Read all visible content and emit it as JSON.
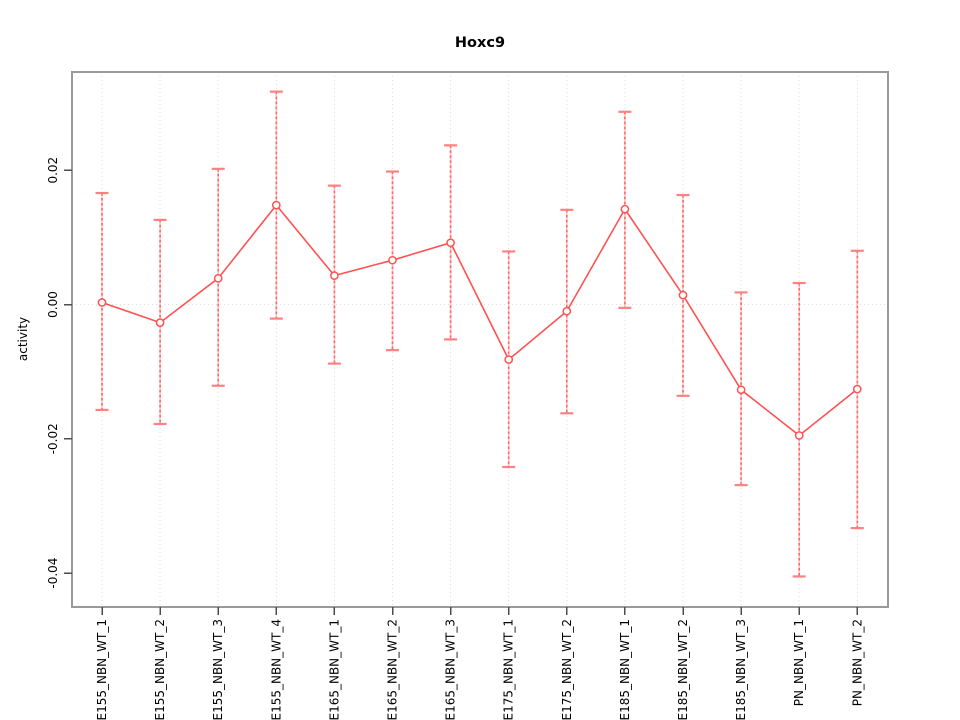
{
  "figure": {
    "title": "Hoxc9",
    "ylabel": "activity",
    "xlabel": ""
  },
  "colors": {
    "series_line": "#ff5252",
    "error_bar_solid": "#ff8080",
    "error_bar_light": "#ffc2c2",
    "error_bar_dash": "#ff6666",
    "marker_fill": "#ffffff",
    "grid": "#dcdcdc",
    "box_border": "#999999",
    "tick": "#4d4d4d",
    "text": "#000000"
  },
  "chart_data": {
    "type": "line",
    "title": "Hoxc9",
    "xlabel": "",
    "ylabel": "activity",
    "legend": "none",
    "grid": "dotted vertical gridline per category; dotted horizontal gridline at y=0 only",
    "marker": "open-circle",
    "error_bars": true,
    "ylim": [
      -0.045,
      0.0346
    ],
    "yticks": [
      0.02,
      0.0,
      -0.02,
      -0.04
    ],
    "ytick_labels": [
      "0.02",
      "0.00",
      "-0.02",
      "-0.04"
    ],
    "categories": [
      "E155_NBN_WT_1",
      "E155_NBN_WT_2",
      "E155_NBN_WT_3",
      "E155_NBN_WT_4",
      "E165_NBN_WT_1",
      "E165_NBN_WT_2",
      "E165_NBN_WT_3",
      "E175_NBN_WT_1",
      "E175_NBN_WT_2",
      "E185_NBN_WT_1",
      "E185_NBN_WT_2",
      "E185_NBN_WT_3",
      "PN_NBN_WT_1",
      "PN_NBN_WT_2"
    ],
    "series": [
      {
        "name": "activity",
        "values": [
          0.0003,
          -0.0027,
          0.0039,
          0.0148,
          0.0043,
          0.0066,
          0.0092,
          -0.0082,
          -0.001,
          0.0142,
          0.0014,
          -0.0127,
          -0.0195,
          -0.0126
        ],
        "lower": [
          -0.0157,
          -0.0178,
          -0.0121,
          -0.0021,
          -0.0088,
          -0.0068,
          -0.0052,
          -0.0242,
          -0.0162,
          -0.0005,
          -0.0136,
          -0.0269,
          -0.0405,
          -0.0333
        ],
        "upper": [
          0.0166,
          0.0126,
          0.0202,
          0.0317,
          0.0177,
          0.0198,
          0.0237,
          0.0079,
          0.0141,
          0.0287,
          0.0163,
          0.0018,
          0.0032,
          0.008
        ]
      }
    ]
  }
}
